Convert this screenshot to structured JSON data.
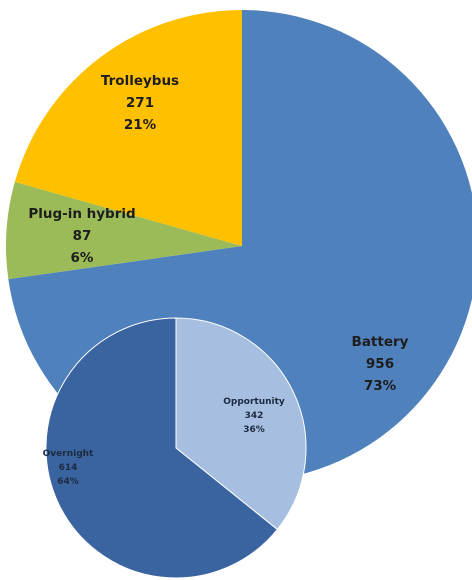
{
  "chart_data": [
    {
      "type": "pie",
      "title": "",
      "categories": [
        "Battery",
        "Plug-in hybrid",
        "Trolleybus"
      ],
      "values": [
        956,
        87,
        271
      ],
      "percent_labels": [
        "73%",
        "6%",
        "21%"
      ],
      "value_labels": [
        "956",
        "87",
        "271"
      ],
      "colors": [
        "#4f81bd",
        "#9bbb59",
        "#ffc000"
      ],
      "start_angle_deg": 0,
      "direction": "clockwise"
    },
    {
      "type": "pie",
      "title": "",
      "categories": [
        "Opportunity",
        "Overnight"
      ],
      "values": [
        342,
        614
      ],
      "percent_labels": [
        "36%",
        "64%"
      ],
      "value_labels": [
        "342",
        "614"
      ],
      "colors": [
        "#a6bfe0",
        "#3a64a0"
      ],
      "start_angle_deg": 0,
      "direction": "clockwise"
    }
  ]
}
